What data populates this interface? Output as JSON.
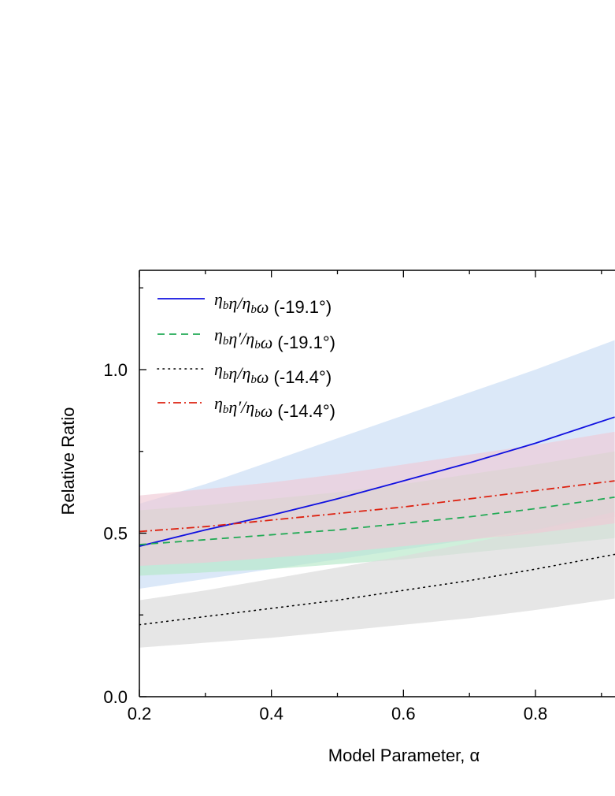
{
  "chart_data": {
    "type": "line",
    "xlabel": "Model Parameter,  α",
    "ylabel": "Relative Ratio",
    "xlim": [
      0.2,
      0.92
    ],
    "ylim": [
      0.0,
      1.3
    ],
    "xticks": [
      0.2,
      0.4,
      0.6,
      0.8
    ],
    "xtick_labels": [
      "0.2",
      "0.4",
      "0.6",
      "0.8"
    ],
    "yticks": [
      0.0,
      0.5,
      1.0
    ],
    "ytick_labels": [
      "0.0",
      "0.5",
      "1.0"
    ],
    "legend_position": "top-left",
    "grid": false,
    "series": [
      {
        "name": "ηbη/ηbω (-19.1°)",
        "legend_label": {
          "main": "η",
          "sub": "b",
          "main2": "η",
          "slash": "/",
          "main3": "η",
          "sub2": "b",
          "main4": "ω",
          "angle": " (-19.1°)"
        },
        "color": "#1010e0",
        "dash": "solid",
        "band_color": "#c7dcf5",
        "band_opacity": 0.65,
        "x": [
          0.2,
          0.3,
          0.4,
          0.5,
          0.6,
          0.7,
          0.8,
          0.92
        ],
        "y": [
          0.46,
          0.51,
          0.555,
          0.605,
          0.66,
          0.715,
          0.775,
          0.855
        ],
        "y_low": [
          0.33,
          0.36,
          0.39,
          0.42,
          0.45,
          0.48,
          0.51,
          0.55
        ],
        "y_high": [
          0.59,
          0.65,
          0.72,
          0.79,
          0.86,
          0.93,
          1.0,
          1.09
        ]
      },
      {
        "name": "ηbη′/ηbω (-19.1°)",
        "legend_label": {
          "main": "η",
          "sub": "b",
          "main2": "η′",
          "slash": "/",
          "main3": "η",
          "sub2": "b",
          "main4": "ω",
          "angle": " (-19.1°)"
        },
        "color": "#22aa55",
        "dash": "dashed",
        "band_color": "#b5e8c8",
        "band_opacity": 0.65,
        "x": [
          0.2,
          0.3,
          0.4,
          0.5,
          0.6,
          0.7,
          0.8,
          0.92
        ],
        "y": [
          0.465,
          0.48,
          0.495,
          0.51,
          0.53,
          0.55,
          0.575,
          0.61
        ],
        "y_low": [
          0.37,
          0.38,
          0.39,
          0.405,
          0.42,
          0.44,
          0.46,
          0.485
        ],
        "y_high": [
          0.57,
          0.585,
          0.605,
          0.625,
          0.65,
          0.68,
          0.71,
          0.75
        ]
      },
      {
        "name": "ηbη/ηbω (-14.4°)",
        "legend_label": {
          "main": "η",
          "sub": "b",
          "main2": "η",
          "slash": "/",
          "main3": "η",
          "sub2": "b",
          "main4": "ω",
          "angle": " (-14.4°)"
        },
        "color": "#000000",
        "dash": "dotted",
        "band_color": "#dcdcdc",
        "band_opacity": 0.7,
        "x": [
          0.2,
          0.3,
          0.4,
          0.5,
          0.6,
          0.7,
          0.8,
          0.92
        ],
        "y": [
          0.22,
          0.245,
          0.27,
          0.295,
          0.325,
          0.355,
          0.39,
          0.435
        ],
        "y_low": [
          0.15,
          0.165,
          0.18,
          0.2,
          0.22,
          0.24,
          0.265,
          0.3
        ],
        "y_high": [
          0.295,
          0.325,
          0.36,
          0.395,
          0.43,
          0.47,
          0.51,
          0.565
        ]
      },
      {
        "name": "ηbη′/ηbω (-14.4°)",
        "legend_label": {
          "main": "η",
          "sub": "b",
          "main2": "η′",
          "slash": "/",
          "main3": "η",
          "sub2": "b",
          "main4": "ω",
          "angle": " (-14.4°)"
        },
        "color": "#dd2211",
        "dash": "dashdot",
        "band_color": "#f0c9d6",
        "band_opacity": 0.65,
        "x": [
          0.2,
          0.3,
          0.4,
          0.5,
          0.6,
          0.7,
          0.8,
          0.92
        ],
        "y": [
          0.505,
          0.52,
          0.54,
          0.56,
          0.58,
          0.605,
          0.63,
          0.66
        ],
        "y_low": [
          0.4,
          0.41,
          0.425,
          0.44,
          0.46,
          0.48,
          0.5,
          0.53
        ],
        "y_high": [
          0.615,
          0.635,
          0.655,
          0.68,
          0.71,
          0.74,
          0.77,
          0.81
        ]
      }
    ]
  }
}
